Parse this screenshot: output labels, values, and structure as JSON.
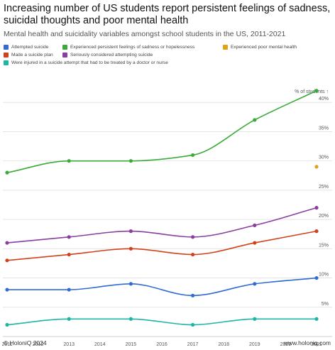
{
  "header": {
    "title": "Increasing number of US students report persistent feelings of sadness, suicidal thoughts and poor mental health",
    "subtitle": "Mental health and suicidality variables amongst school students in the US, 2011-2021"
  },
  "footer": {
    "copyright": "© HoloniQ 2024",
    "website": "www.holoniq.com"
  },
  "chart_data": {
    "type": "line",
    "x": [
      2011,
      2012,
      2013,
      2014,
      2015,
      2016,
      2017,
      2018,
      2019,
      2020,
      2021
    ],
    "x_tick_labels": [
      "2011",
      "2012",
      "2013",
      "2014",
      "2015",
      "2016",
      "2017",
      "2018",
      "2019",
      "2020",
      "2021"
    ],
    "y_tick_values": [
      5,
      10,
      15,
      20,
      25,
      30,
      35,
      40
    ],
    "y_tick_labels": [
      "5%",
      "10%",
      "15%",
      "20%",
      "25%",
      "30%",
      "35%",
      "40%"
    ],
    "ylabel": "% of students ↑",
    "ylim": [
      0,
      45
    ],
    "grid": "horizontal",
    "legend_position": "top-left",
    "series": [
      {
        "name": "Attempted suicide",
        "color": "#2f6bd3",
        "x": [
          2011,
          2013,
          2015,
          2017,
          2019,
          2021
        ],
        "values": [
          8,
          8,
          9,
          7,
          9,
          10
        ]
      },
      {
        "name": "Experienced persistent feelings of sadness or hopelessness",
        "color": "#3aaa3a",
        "x": [
          2011,
          2013,
          2015,
          2017,
          2019,
          2021
        ],
        "values": [
          28,
          30,
          30,
          31,
          37,
          42
        ]
      },
      {
        "name": "Experienced poor mental health",
        "color": "#e0a21b",
        "x": [
          2021
        ],
        "values": [
          29
        ]
      },
      {
        "name": "Made a suicide plan",
        "color": "#d1421b",
        "x": [
          2011,
          2013,
          2015,
          2017,
          2019,
          2021
        ],
        "values": [
          13,
          14,
          15,
          14,
          16,
          18
        ]
      },
      {
        "name": "Seriously considered attempting suicide",
        "color": "#8a3f9e",
        "x": [
          2011,
          2013,
          2015,
          2017,
          2019,
          2021
        ],
        "values": [
          16,
          17,
          18,
          17,
          19,
          22
        ]
      },
      {
        "name": "Were injured in a suicide attempt that had to be treated by a doctor or nurse",
        "color": "#1fb5a3",
        "x": [
          2011,
          2013,
          2015,
          2017,
          2019,
          2021
        ],
        "values": [
          2,
          3,
          3,
          2,
          3,
          3
        ]
      }
    ]
  }
}
